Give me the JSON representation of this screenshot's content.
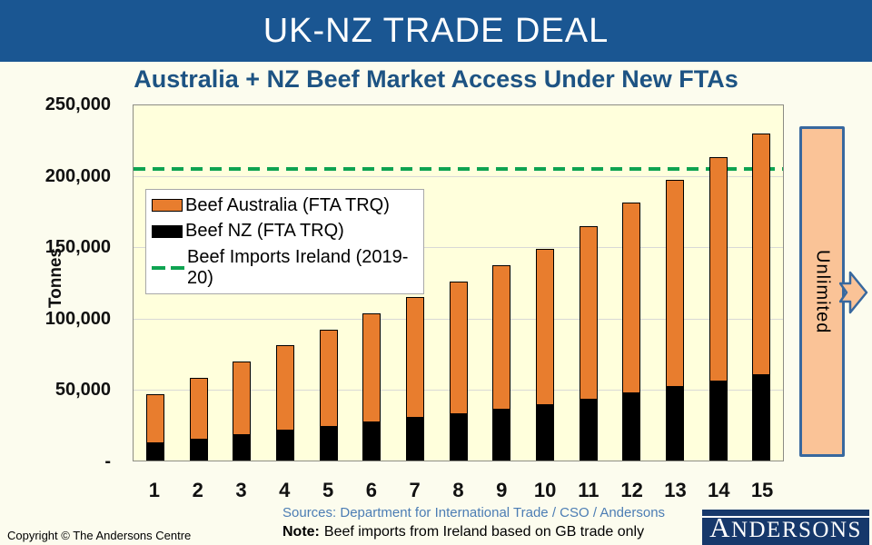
{
  "banner": {
    "title": "UK-NZ TRADE DEAL"
  },
  "legend": {
    "items": [
      {
        "label": "Beef Australia (FTA TRQ)",
        "swatch": "orange-rect"
      },
      {
        "label": "Beef NZ (FTA TRQ)",
        "swatch": "black-rect"
      },
      {
        "label": "Beef Imports Ireland (2019-20)",
        "swatch": "green-dashed-line"
      }
    ]
  },
  "annotations": {
    "unlimited_label": "Unlimited"
  },
  "footer": {
    "sources": "Sources: Department for International Trade / CSO / Andersons",
    "note_label": "Note:",
    "note_text": "Beef imports from Ireland based on GB trade only",
    "copyright": "Copyright © The Andersons Centre",
    "logo_text": "ANDERSONS"
  },
  "colors": {
    "banner_blue": "#1A5692",
    "title_blue": "#1D5383",
    "bar_orange": "#E87D2E",
    "bar_black": "#000000",
    "ireland_green": "#0EA351",
    "plot_background": "#FFFFDC",
    "slide_background": "#FCFCEE",
    "callout_fill": "#FAC397",
    "callout_border": "#38689E",
    "logo_navy": "#16386B",
    "sources_blue": "#4C7DB4"
  },
  "chart_data": {
    "type": "bar",
    "stacked": true,
    "title": "Australia + NZ Beef Market Access Under New FTAs",
    "xlabel": "",
    "ylabel": "Tonnes",
    "categories": [
      1,
      2,
      3,
      4,
      5,
      6,
      7,
      8,
      9,
      10,
      11,
      12,
      13,
      14,
      15
    ],
    "series": [
      {
        "name": "Beef NZ (FTA TRQ)",
        "color": "#000000",
        "values": [
          12000,
          14980,
          17960,
          20940,
          23920,
          26900,
          29880,
          32860,
          35840,
          38820,
          43056,
          47292,
          51528,
          55764,
          60000
        ]
      },
      {
        "name": "Beef Australia (FTA TRQ)",
        "color": "#E87D2E",
        "values": [
          35000,
          43333,
          51667,
          60000,
          68333,
          76667,
          85000,
          93333,
          101667,
          110000,
          122000,
          134000,
          146000,
          158000,
          170000
        ]
      }
    ],
    "reference_line": {
      "label": "Beef Imports Ireland (2019-20)",
      "value": 205000,
      "color": "#0EA351",
      "style": "dashed"
    },
    "ylim": [
      0,
      250000
    ],
    "yticks": {
      "values": [
        0,
        50000,
        100000,
        150000,
        200000,
        250000
      ],
      "labels": [
        "-",
        "50,000",
        "100,000",
        "150,000",
        "200,000",
        "250,000"
      ]
    },
    "grid": "horizontal",
    "legend_position": "inside-upper-left"
  }
}
